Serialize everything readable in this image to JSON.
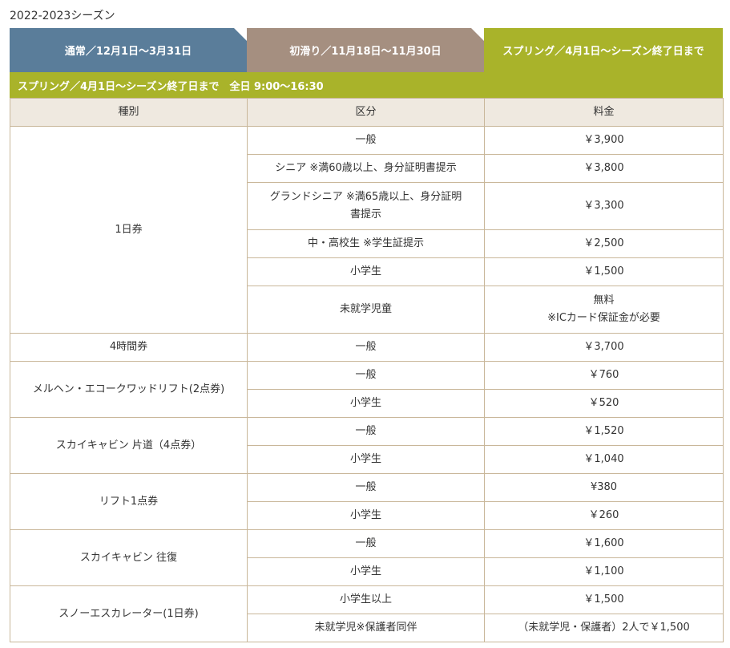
{
  "season_title": "2022-2023シーズン",
  "tabs": [
    {
      "label": "通常／12月1日～3月31日",
      "active": false,
      "color": "#5a7d9a"
    },
    {
      "label": "初滑り／11月18日～11月30日",
      "active": false,
      "color": "#a58f80"
    },
    {
      "label": "スプリング／4月1日～シーズン終了日まで",
      "active": true,
      "color": "#a9b32a"
    }
  ],
  "subheader": "スプリング／4月1日～シーズン終了日まで　全日 9:00～16:30",
  "table": {
    "headers": [
      "種別",
      "区分",
      "料金"
    ],
    "groups": [
      {
        "type": "1日券",
        "rows": [
          {
            "category": "一般",
            "price": "￥3,900"
          },
          {
            "category": "シニア ※満60歳以上、身分証明書提示",
            "price": "￥3,800"
          },
          {
            "category": "グランドシニア ※満65歳以上、身分証明",
            "category_line2": "書提示",
            "price": "￥3,300"
          },
          {
            "category": "中・高校生 ※学生証提示",
            "price": "￥2,500"
          },
          {
            "category": "小学生",
            "price": "￥1,500"
          },
          {
            "category": "未就学児童",
            "price": "無料",
            "price_line2": "※ICカード保証金が必要"
          }
        ]
      },
      {
        "type": "4時間券",
        "rows": [
          {
            "category": "一般",
            "price": "￥3,700"
          }
        ]
      },
      {
        "type": "メルヘン・エコークワッドリフト(2点券)",
        "rows": [
          {
            "category": "一般",
            "price": "￥760"
          },
          {
            "category": "小学生",
            "price": "￥520"
          }
        ]
      },
      {
        "type": "スカイキャビン 片道（4点券）",
        "rows": [
          {
            "category": "一般",
            "price": "￥1,520"
          },
          {
            "category": "小学生",
            "price": "￥1,040"
          }
        ]
      },
      {
        "type": "リフト1点券",
        "rows": [
          {
            "category": "一般",
            "price": "¥380"
          },
          {
            "category": "小学生",
            "price": "￥260"
          }
        ]
      },
      {
        "type": "スカイキャビン 往復",
        "rows": [
          {
            "category": "一般",
            "price": "￥1,600"
          },
          {
            "category": "小学生",
            "price": "￥1,100"
          }
        ]
      },
      {
        "type": "スノーエスカレーター(1日券)",
        "rows": [
          {
            "category": "小学生以上",
            "price": "￥1,500"
          },
          {
            "category": "未就学児※保護者同伴",
            "price": "（未就学児・保護者）2人で￥1,500"
          }
        ]
      }
    ]
  }
}
